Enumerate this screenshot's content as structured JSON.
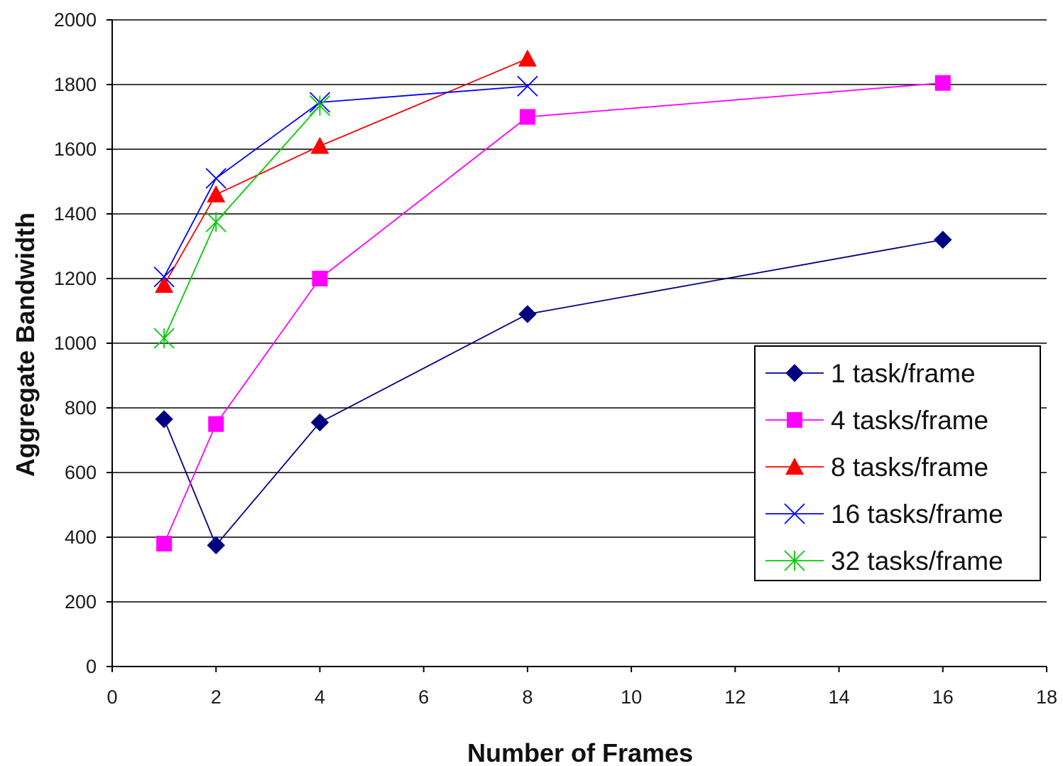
{
  "chart_data": {
    "type": "line",
    "title": "",
    "xlabel": "Number of Frames",
    "ylabel": "Aggregate Bandwidth",
    "xlim": [
      0,
      18
    ],
    "ylim": [
      0,
      2000
    ],
    "xticks": [
      0,
      2,
      4,
      6,
      8,
      10,
      12,
      14,
      16,
      18
    ],
    "yticks": [
      0,
      200,
      400,
      600,
      800,
      1000,
      1200,
      1400,
      1600,
      1800,
      2000
    ],
    "x_tick_labels": [
      "0",
      "2",
      "4",
      "6",
      "8",
      "10",
      "12",
      "14",
      "16",
      "18"
    ],
    "y_tick_labels": [
      "0",
      "200",
      "400",
      "600",
      "800",
      "1000",
      "1200",
      "1400",
      "1600",
      "1800",
      "2000"
    ],
    "grid": "horizontal",
    "legend_position": "right",
    "series": [
      {
        "name": "1 task/frame",
        "color": "#000080",
        "marker": "diamond",
        "x": [
          1,
          2,
          4,
          8,
          16
        ],
        "values": [
          765,
          375,
          755,
          1090,
          1320
        ]
      },
      {
        "name": "4 tasks/frame",
        "color": "#ff00ff",
        "marker": "square",
        "x": [
          1,
          2,
          4,
          8,
          16
        ],
        "values": [
          380,
          750,
          1200,
          1700,
          1805
        ]
      },
      {
        "name": "8 tasks/frame",
        "color": "#ff0000",
        "marker": "triangle",
        "x": [
          1,
          2,
          4,
          8
        ],
        "values": [
          1180,
          1460,
          1610,
          1880
        ]
      },
      {
        "name": "16 tasks/frame",
        "color": "#0000ff",
        "marker": "x",
        "x": [
          1,
          2,
          4,
          8
        ],
        "values": [
          1205,
          1510,
          1745,
          1795
        ]
      },
      {
        "name": "32 tasks/frame",
        "color": "#00cc00",
        "marker": "star",
        "x": [
          1,
          2,
          4
        ],
        "values": [
          1015,
          1375,
          1735
        ]
      }
    ]
  }
}
